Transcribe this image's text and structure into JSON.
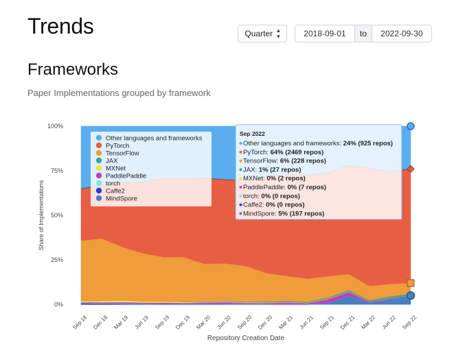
{
  "header": {
    "title": "Trends"
  },
  "controls": {
    "granularity": "Quarter",
    "date_from": "2018-09-01",
    "to_label": "to",
    "date_to": "2022-09-30"
  },
  "section": {
    "title": "Frameworks",
    "subtitle": "Paper Implementations grouped by framework"
  },
  "chart_data": {
    "type": "area",
    "stacked": true,
    "xlabel": "Repository Creation Date",
    "ylabel": "Share of Implementations",
    "ylim": [
      0,
      100
    ],
    "y_ticks": [
      "0%",
      "25%",
      "50%",
      "75%",
      "100%"
    ],
    "categories": [
      "Sep 18",
      "Dec 18",
      "Mar 19",
      "Jun 19",
      "Sep 19",
      "Dec 19",
      "Mar 20",
      "Jun 20",
      "Sep 20",
      "Dec 20",
      "Mar 21",
      "Jun 21",
      "Sep 21",
      "Dec 21",
      "Mar 22",
      "Jun 22",
      "Sep 22"
    ],
    "series": [
      {
        "name": "MindSpore",
        "color": "#4a7fc0",
        "values": [
          0,
          0,
          0,
          0,
          0,
          0,
          0,
          0,
          0,
          0,
          0,
          0,
          1,
          5,
          1,
          3,
          5
        ]
      },
      {
        "name": "Caffe2",
        "color": "#1f3fd9",
        "values": [
          0.7,
          0.5,
          0.4,
          0.3,
          0.3,
          0.2,
          0.2,
          0.2,
          0.1,
          0.1,
          0.1,
          0.1,
          0,
          0,
          0,
          0,
          0
        ]
      },
      {
        "name": "torch",
        "color": "#7fe6e6",
        "values": [
          0.3,
          0.2,
          0.2,
          0.2,
          0.1,
          0.1,
          0.1,
          0.1,
          0.1,
          0.1,
          0,
          0,
          0,
          0,
          0,
          0,
          0
        ]
      },
      {
        "name": "PaddlePaddle",
        "color": "#c73cc0",
        "values": [
          0.3,
          0.5,
          0.7,
          0.5,
          0.6,
          0.5,
          0.8,
          1,
          0.7,
          0.6,
          1,
          0.6,
          2,
          2,
          0.5,
          0.5,
          0
        ]
      },
      {
        "name": "MXNet",
        "color": "#e8e84a",
        "values": [
          0.5,
          0.8,
          1,
          0.7,
          0.6,
          0.5,
          0.4,
          0.4,
          0.3,
          0.3,
          0.3,
          0.2,
          0.2,
          0.2,
          0.1,
          0.1,
          0
        ]
      },
      {
        "name": "JAX",
        "color": "#3aa88f",
        "values": [
          0,
          0,
          0,
          0,
          0,
          0.2,
          0.3,
          0.3,
          0.4,
          0.5,
          0.6,
          0.6,
          0.7,
          0.8,
          0.8,
          0.9,
          1
        ]
      },
      {
        "name": "TensorFlow",
        "color": "#ef9c3a",
        "values": [
          34,
          35,
          30,
          27,
          25,
          25,
          21,
          21,
          20,
          16,
          14,
          13,
          12,
          9,
          8,
          7,
          6
        ]
      },
      {
        "name": "PyTorch",
        "color": "#e85e44",
        "values": [
          29,
          30,
          36,
          40,
          44,
          44,
          48,
          47,
          48,
          54,
          57,
          58,
          58,
          61,
          66,
          63,
          64
        ]
      },
      {
        "name": "Other languages and frameworks",
        "color": "#5aaef0",
        "values": [
          35.2,
          33,
          31.7,
          31.3,
          29.4,
          29.5,
          29.2,
          30,
          30.4,
          28.4,
          27,
          27.5,
          26.1,
          22,
          23.6,
          25.5,
          24
        ]
      }
    ],
    "legend_order": [
      "Other languages and frameworks",
      "PyTorch",
      "TensorFlow",
      "JAX",
      "MXNet",
      "PaddlePaddle",
      "torch",
      "Caffe2",
      "MindSpore"
    ],
    "legend_position": "top-left",
    "hover_index": 16,
    "tooltip": {
      "title": "Sep 2022",
      "lines": [
        {
          "label": "Other languages and frameworks: ",
          "value": "24% (925 repos)",
          "color": "#5aaef0"
        },
        {
          "label": "PyTorch: ",
          "value": "64% (2469 repos)",
          "color": "#e85e44"
        },
        {
          "label": "TensorFlow: ",
          "value": "6% (228 repos)",
          "color": "#ef9c3a"
        },
        {
          "label": "JAX: ",
          "value": "1% (27 repos)",
          "color": "#3aa88f"
        },
        {
          "label": "MXNet: ",
          "value": "0% (2 repos)",
          "color": "#e8e84a"
        },
        {
          "label": "PaddlePaddle: ",
          "value": "0% (7 repos)",
          "color": "#c73cc0"
        },
        {
          "label": "torch: ",
          "value": "0% (0 repos)",
          "color": "#7fe6e6"
        },
        {
          "label": "Caffe2: ",
          "value": "0% (0 repos)",
          "color": "#1f3fd9"
        },
        {
          "label": "MindSpore: ",
          "value": "5% (197 repos)",
          "color": "#4a7fc0"
        }
      ]
    }
  }
}
